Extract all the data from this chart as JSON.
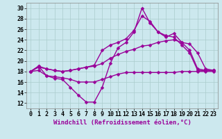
{
  "background_color": "#cce8ee",
  "grid_color": "#aacccc",
  "line_color": "#990099",
  "marker": "D",
  "markersize": 2.5,
  "linewidth": 1.0,
  "xlabel": "Windchill (Refroidissement éolien,°C)",
  "xlabel_fontsize": 6.5,
  "tick_fontsize": 6.0,
  "xlim": [
    -0.5,
    23.5
  ],
  "ylim": [
    11,
    31
  ],
  "yticks": [
    12,
    14,
    16,
    18,
    20,
    22,
    24,
    26,
    28,
    30
  ],
  "xticks": [
    0,
    1,
    2,
    3,
    4,
    5,
    6,
    7,
    8,
    9,
    10,
    11,
    12,
    13,
    14,
    15,
    16,
    17,
    18,
    19,
    20,
    21,
    22,
    23
  ],
  "series": [
    [
      18.0,
      19.0,
      17.2,
      16.7,
      16.5,
      15.0,
      13.5,
      12.2,
      12.2,
      15.0,
      19.5,
      22.5,
      23.5,
      25.5,
      30.0,
      27.2,
      25.5,
      24.8,
      24.5,
      23.0,
      21.5,
      18.2,
      18.2,
      18.2
    ],
    [
      18.0,
      18.2,
      17.2,
      17.0,
      16.8,
      16.5,
      16.0,
      16.0,
      16.0,
      16.5,
      17.0,
      17.5,
      17.8,
      17.8,
      17.8,
      17.8,
      17.8,
      17.8,
      17.8,
      18.0,
      18.0,
      18.0,
      18.0,
      18.0
    ],
    [
      18.0,
      18.8,
      18.5,
      18.2,
      18.0,
      18.2,
      18.5,
      18.8,
      19.0,
      19.5,
      20.5,
      21.2,
      21.8,
      22.2,
      22.8,
      23.0,
      23.5,
      23.8,
      24.0,
      23.5,
      23.2,
      21.5,
      18.5,
      18.2
    ],
    [
      18.0,
      19.0,
      18.5,
      18.2,
      18.0,
      18.2,
      18.5,
      18.8,
      19.2,
      22.0,
      23.0,
      23.5,
      24.2,
      25.8,
      28.5,
      27.5,
      25.5,
      24.5,
      25.2,
      23.5,
      22.0,
      18.5,
      18.2,
      18.2
    ]
  ]
}
